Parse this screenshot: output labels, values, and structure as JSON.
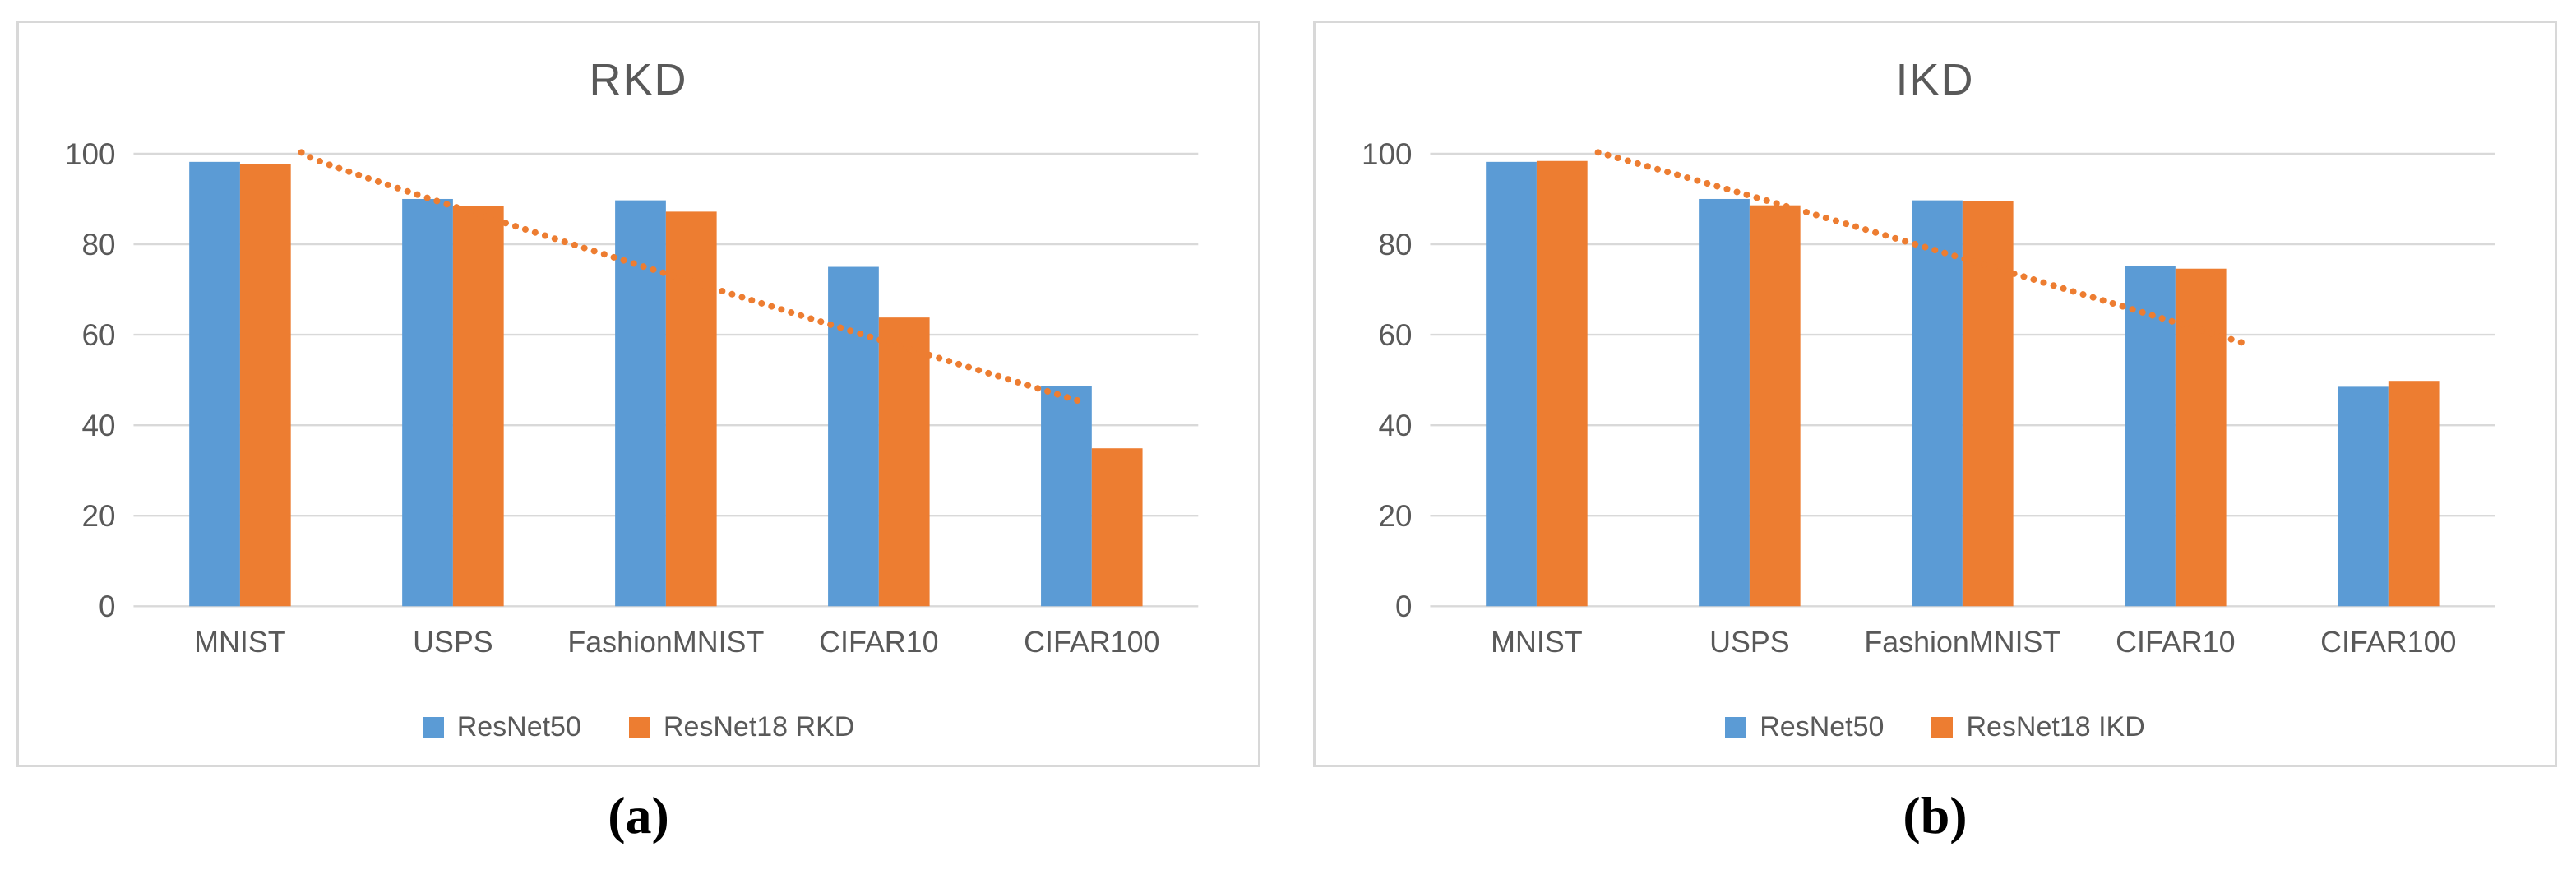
{
  "chart_data": [
    {
      "type": "bar",
      "panel": "a",
      "title": "RKD",
      "caption": "(a)",
      "categories": [
        "MNIST",
        "USPS",
        "FashionMNIST",
        "CIFAR10",
        "CIFAR100"
      ],
      "series": [
        {
          "name": "ResNet50",
          "color": "#5B9BD5",
          "values": [
            98.2,
            90.0,
            89.7,
            75.0,
            48.6
          ]
        },
        {
          "name": "ResNet18 RKD",
          "color": "#ED7D31",
          "values": [
            97.7,
            88.5,
            87.2,
            63.8,
            34.9
          ]
        }
      ],
      "trendline": {
        "color": "#ED7D31",
        "style": "dotted",
        "points": [
          {
            "x": 345,
            "value": 100.3
          },
          {
            "x": 580,
            "value": 85.5
          },
          {
            "x": 1301,
            "value": 45.0
          }
        ]
      },
      "xlabel": "",
      "ylabel": "",
      "y_ticks": [
        0,
        20,
        40,
        60,
        80,
        100
      ],
      "ylim": [
        0,
        108
      ],
      "grid": true,
      "legend_position": "bottom"
    },
    {
      "type": "bar",
      "panel": "b",
      "title": "IKD",
      "caption": "(b)",
      "categories": [
        "MNIST",
        "USPS",
        "FashionMNIST",
        "CIFAR10",
        "CIFAR100"
      ],
      "series": [
        {
          "name": "ResNet50",
          "color": "#5B9BD5",
          "values": [
            98.2,
            90.0,
            89.7,
            75.2,
            48.5
          ]
        },
        {
          "name": "ResNet18 IKD",
          "color": "#ED7D31",
          "values": [
            98.4,
            88.6,
            89.6,
            74.6,
            49.8
          ]
        }
      ],
      "trendline": {
        "color": "#ED7D31",
        "style": "dotted",
        "points": [
          {
            "x": 345,
            "value": 100.3
          },
          {
            "x": 695,
            "value": 82.0
          },
          {
            "x": 1136,
            "value": 58.0
          }
        ]
      },
      "xlabel": "",
      "ylabel": "",
      "y_ticks": [
        0,
        20,
        40,
        60,
        80,
        100
      ],
      "ylim": [
        0,
        108
      ],
      "grid": true,
      "legend_position": "bottom"
    }
  ],
  "style": {
    "bar_blue": "#5B9BD5",
    "bar_orange": "#ED7D31",
    "gridline_color": "#D9D9D9",
    "axis_text_color": "#595959",
    "panel_border_color": "#D8D8D8",
    "background": "#FFFFFF"
  }
}
